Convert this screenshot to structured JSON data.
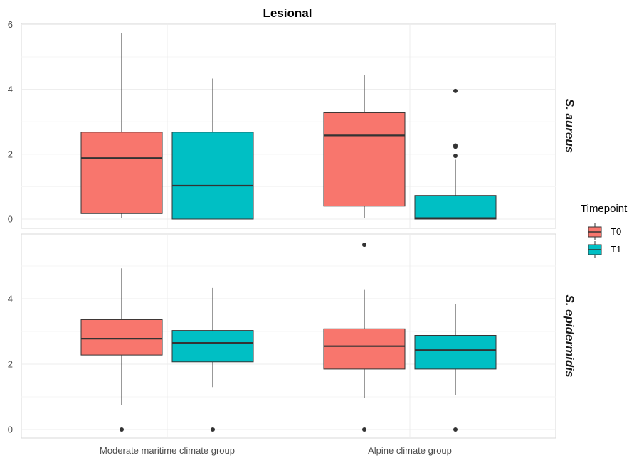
{
  "chart_data": {
    "type": "boxplot",
    "title": "Lesional",
    "categories": [
      "Moderate maritime climate group",
      "Alpine climate group"
    ],
    "legend": {
      "title": "Timepoint",
      "position": "right",
      "entries": [
        {
          "name": "T0",
          "color": "#F8766D"
        },
        {
          "name": "T1",
          "color": "#00BFC4"
        }
      ]
    },
    "grid": true,
    "facets": [
      {
        "label": "S. aureus",
        "ylim": [
          -0.25,
          6
        ],
        "yticks": [
          0,
          2,
          4,
          6
        ],
        "boxes": [
          {
            "category": "Moderate maritime climate group",
            "series": "T0",
            "q1": 0.17,
            "median": 1.88,
            "q3": 2.68,
            "whisker_low": 0.03,
            "whisker_high": 5.73,
            "outliers": []
          },
          {
            "category": "Moderate maritime climate group",
            "series": "T1",
            "q1": 0.0,
            "median": 1.03,
            "q3": 2.68,
            "whisker_low": 0.0,
            "whisker_high": 4.33,
            "outliers": []
          },
          {
            "category": "Alpine climate group",
            "series": "T0",
            "q1": 0.4,
            "median": 2.58,
            "q3": 3.28,
            "whisker_low": 0.03,
            "whisker_high": 4.43,
            "outliers": []
          },
          {
            "category": "Alpine climate group",
            "series": "T1",
            "q1": 0.0,
            "median": 0.03,
            "q3": 0.73,
            "whisker_low": 0.0,
            "whisker_high": 1.83,
            "outliers": [
              1.95,
              2.23,
              2.27,
              3.95
            ]
          }
        ]
      },
      {
        "label": "S. epidermidis",
        "ylim": [
          -0.25,
          5.9
        ],
        "yticks": [
          0,
          2,
          4
        ],
        "boxes": [
          {
            "category": "Moderate maritime climate group",
            "series": "T0",
            "q1": 2.28,
            "median": 2.78,
            "q3": 3.36,
            "whisker_low": 0.75,
            "whisker_high": 4.93,
            "outliers": [
              0.0
            ]
          },
          {
            "category": "Moderate maritime climate group",
            "series": "T1",
            "q1": 2.07,
            "median": 2.65,
            "q3": 3.03,
            "whisker_low": 1.3,
            "whisker_high": 4.33,
            "outliers": [
              0.0
            ]
          },
          {
            "category": "Alpine climate group",
            "series": "T0",
            "q1": 1.85,
            "median": 2.55,
            "q3": 3.08,
            "whisker_low": 0.97,
            "whisker_high": 4.27,
            "outliers": [
              0.0,
              5.65
            ]
          },
          {
            "category": "Alpine climate group",
            "series": "T1",
            "q1": 1.85,
            "median": 2.43,
            "q3": 2.88,
            "whisker_low": 1.05,
            "whisker_high": 3.83,
            "outliers": [
              0.0
            ]
          }
        ]
      }
    ]
  }
}
